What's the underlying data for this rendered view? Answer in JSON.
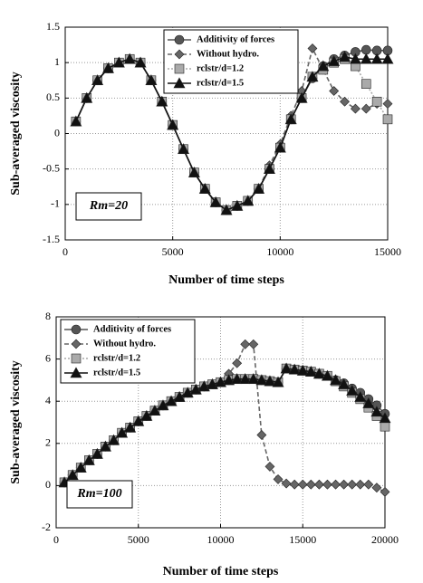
{
  "chart_data": [
    {
      "type": "line",
      "xlabel": "Number of time steps",
      "ylabel": "Sub-averaged viscosity",
      "annotation": "Rm=20",
      "x": [
        500,
        1000,
        1500,
        2000,
        2500,
        3000,
        3500,
        4000,
        4500,
        5000,
        5500,
        6000,
        6500,
        7000,
        7500,
        8000,
        8500,
        9000,
        9500,
        10000,
        10500,
        11000,
        11500,
        12000,
        12500,
        13000,
        13500,
        14000,
        14500,
        15000
      ],
      "xlim": [
        0,
        15000
      ],
      "xticks": [
        0,
        5000,
        10000,
        15000
      ],
      "ylim": [
        -1.5,
        1.5
      ],
      "yticks": [
        -1.5,
        -1,
        -0.5,
        0,
        0.5,
        1,
        1.5
      ],
      "grid": true,
      "legend": "upper center",
      "series": [
        {
          "name": "Additivity of forces",
          "color": "#555555",
          "marker": "circle",
          "dash": "solid",
          "values": [
            0.17,
            0.5,
            0.75,
            0.92,
            1.0,
            1.05,
            1.0,
            0.75,
            0.45,
            0.12,
            -0.22,
            -0.55,
            -0.78,
            -0.97,
            -1.08,
            -1.02,
            -0.95,
            -0.78,
            -0.5,
            -0.2,
            0.2,
            0.5,
            0.78,
            0.95,
            1.05,
            1.1,
            1.15,
            1.18,
            1.17,
            1.17
          ]
        },
        {
          "name": "Without hydro.",
          "color": "#666666",
          "marker": "diamond",
          "dash": "dashed",
          "values": [
            0.17,
            0.5,
            0.75,
            0.92,
            1.0,
            1.05,
            1.0,
            0.75,
            0.45,
            0.12,
            -0.22,
            -0.55,
            -0.78,
            -0.97,
            -1.08,
            -1.02,
            -0.95,
            -0.78,
            -0.45,
            -0.15,
            0.25,
            0.6,
            1.2,
            0.9,
            0.6,
            0.45,
            0.35,
            0.35,
            0.42,
            0.42
          ]
        },
        {
          "name": "rclstr/d=1.2",
          "color": "#aaaaaa",
          "marker": "square",
          "dash": "dotted",
          "values": [
            0.17,
            0.5,
            0.75,
            0.92,
            1.0,
            1.05,
            1.0,
            0.75,
            0.45,
            0.12,
            -0.22,
            -0.55,
            -0.78,
            -0.97,
            -1.08,
            -1.02,
            -0.95,
            -0.78,
            -0.5,
            -0.2,
            0.2,
            0.5,
            0.8,
            0.9,
            1.0,
            1.05,
            0.95,
            0.7,
            0.45,
            0.2
          ]
        },
        {
          "name": "rclstr/d=1.5",
          "color": "#111111",
          "marker": "triangle",
          "dash": "solid",
          "values": [
            0.17,
            0.5,
            0.75,
            0.92,
            1.0,
            1.05,
            1.0,
            0.75,
            0.45,
            0.12,
            -0.22,
            -0.55,
            -0.78,
            -0.97,
            -1.08,
            -1.02,
            -0.95,
            -0.78,
            -0.5,
            -0.2,
            0.2,
            0.5,
            0.8,
            0.95,
            1.02,
            1.08,
            1.05,
            1.05,
            1.05,
            1.05
          ]
        }
      ]
    },
    {
      "type": "line",
      "xlabel": "Number of time steps",
      "ylabel": "Sub-averaged viscosity",
      "annotation": "Rm=100",
      "x": [
        500,
        1000,
        1500,
        2000,
        2500,
        3000,
        3500,
        4000,
        4500,
        5000,
        5500,
        6000,
        6500,
        7000,
        7500,
        8000,
        8500,
        9000,
        9500,
        10000,
        10500,
        11000,
        11500,
        12000,
        12500,
        13000,
        13500,
        14000,
        14500,
        15000,
        15500,
        16000,
        16500,
        17000,
        17500,
        18000,
        18500,
        19000,
        19500,
        20000
      ],
      "xlim": [
        0,
        20000
      ],
      "xticks": [
        0,
        5000,
        10000,
        15000,
        20000
      ],
      "ylim": [
        -2,
        8
      ],
      "yticks": [
        -2,
        0,
        2,
        4,
        6,
        8
      ],
      "grid": true,
      "legend": "upper left",
      "series": [
        {
          "name": "Additivity of forces",
          "color": "#555555",
          "marker": "circle",
          "dash": "solid",
          "values": [
            0.15,
            0.5,
            0.85,
            1.2,
            1.5,
            1.85,
            2.15,
            2.5,
            2.75,
            3.05,
            3.3,
            3.55,
            3.8,
            4.0,
            4.2,
            4.4,
            4.55,
            4.7,
            4.8,
            4.9,
            5.0,
            5.05,
            5.05,
            5.05,
            5.0,
            4.95,
            4.9,
            5.55,
            5.5,
            5.45,
            5.4,
            5.3,
            5.2,
            5.0,
            4.85,
            4.6,
            4.4,
            4.1,
            3.8,
            3.4
          ]
        },
        {
          "name": "Without hydro.",
          "color": "#666666",
          "marker": "diamond",
          "dash": "dashed",
          "values": [
            0.15,
            0.5,
            0.85,
            1.2,
            1.5,
            1.85,
            2.15,
            2.5,
            2.75,
            3.05,
            3.3,
            3.55,
            3.8,
            4.0,
            4.2,
            4.4,
            4.55,
            4.7,
            4.8,
            4.9,
            5.3,
            5.8,
            6.7,
            6.7,
            2.4,
            0.9,
            0.3,
            0.1,
            0.05,
            0.05,
            0.05,
            0.05,
            0.05,
            0.05,
            0.05,
            0.05,
            0.05,
            0.05,
            -0.1,
            -0.3
          ]
        },
        {
          "name": "rclstr/d=1.2",
          "color": "#aaaaaa",
          "marker": "square",
          "dash": "dotted",
          "values": [
            0.15,
            0.5,
            0.85,
            1.2,
            1.5,
            1.85,
            2.15,
            2.5,
            2.75,
            3.05,
            3.3,
            3.55,
            3.8,
            4.0,
            4.2,
            4.4,
            4.55,
            4.7,
            4.8,
            4.9,
            5.0,
            5.05,
            5.05,
            5.05,
            5.0,
            4.95,
            4.9,
            5.55,
            5.5,
            5.45,
            5.4,
            5.3,
            5.2,
            4.95,
            4.7,
            4.4,
            4.1,
            3.7,
            3.3,
            2.8
          ]
        },
        {
          "name": "rclstr/d=1.5",
          "color": "#111111",
          "marker": "triangle",
          "dash": "solid",
          "values": [
            0.15,
            0.5,
            0.85,
            1.2,
            1.5,
            1.85,
            2.15,
            2.5,
            2.75,
            3.05,
            3.3,
            3.55,
            3.8,
            4.0,
            4.2,
            4.4,
            4.55,
            4.7,
            4.8,
            4.9,
            5.0,
            5.05,
            5.05,
            5.05,
            5.0,
            4.95,
            4.9,
            5.55,
            5.5,
            5.45,
            5.4,
            5.3,
            5.2,
            5.0,
            4.8,
            4.5,
            4.2,
            3.9,
            3.5,
            3.2
          ]
        }
      ]
    }
  ]
}
